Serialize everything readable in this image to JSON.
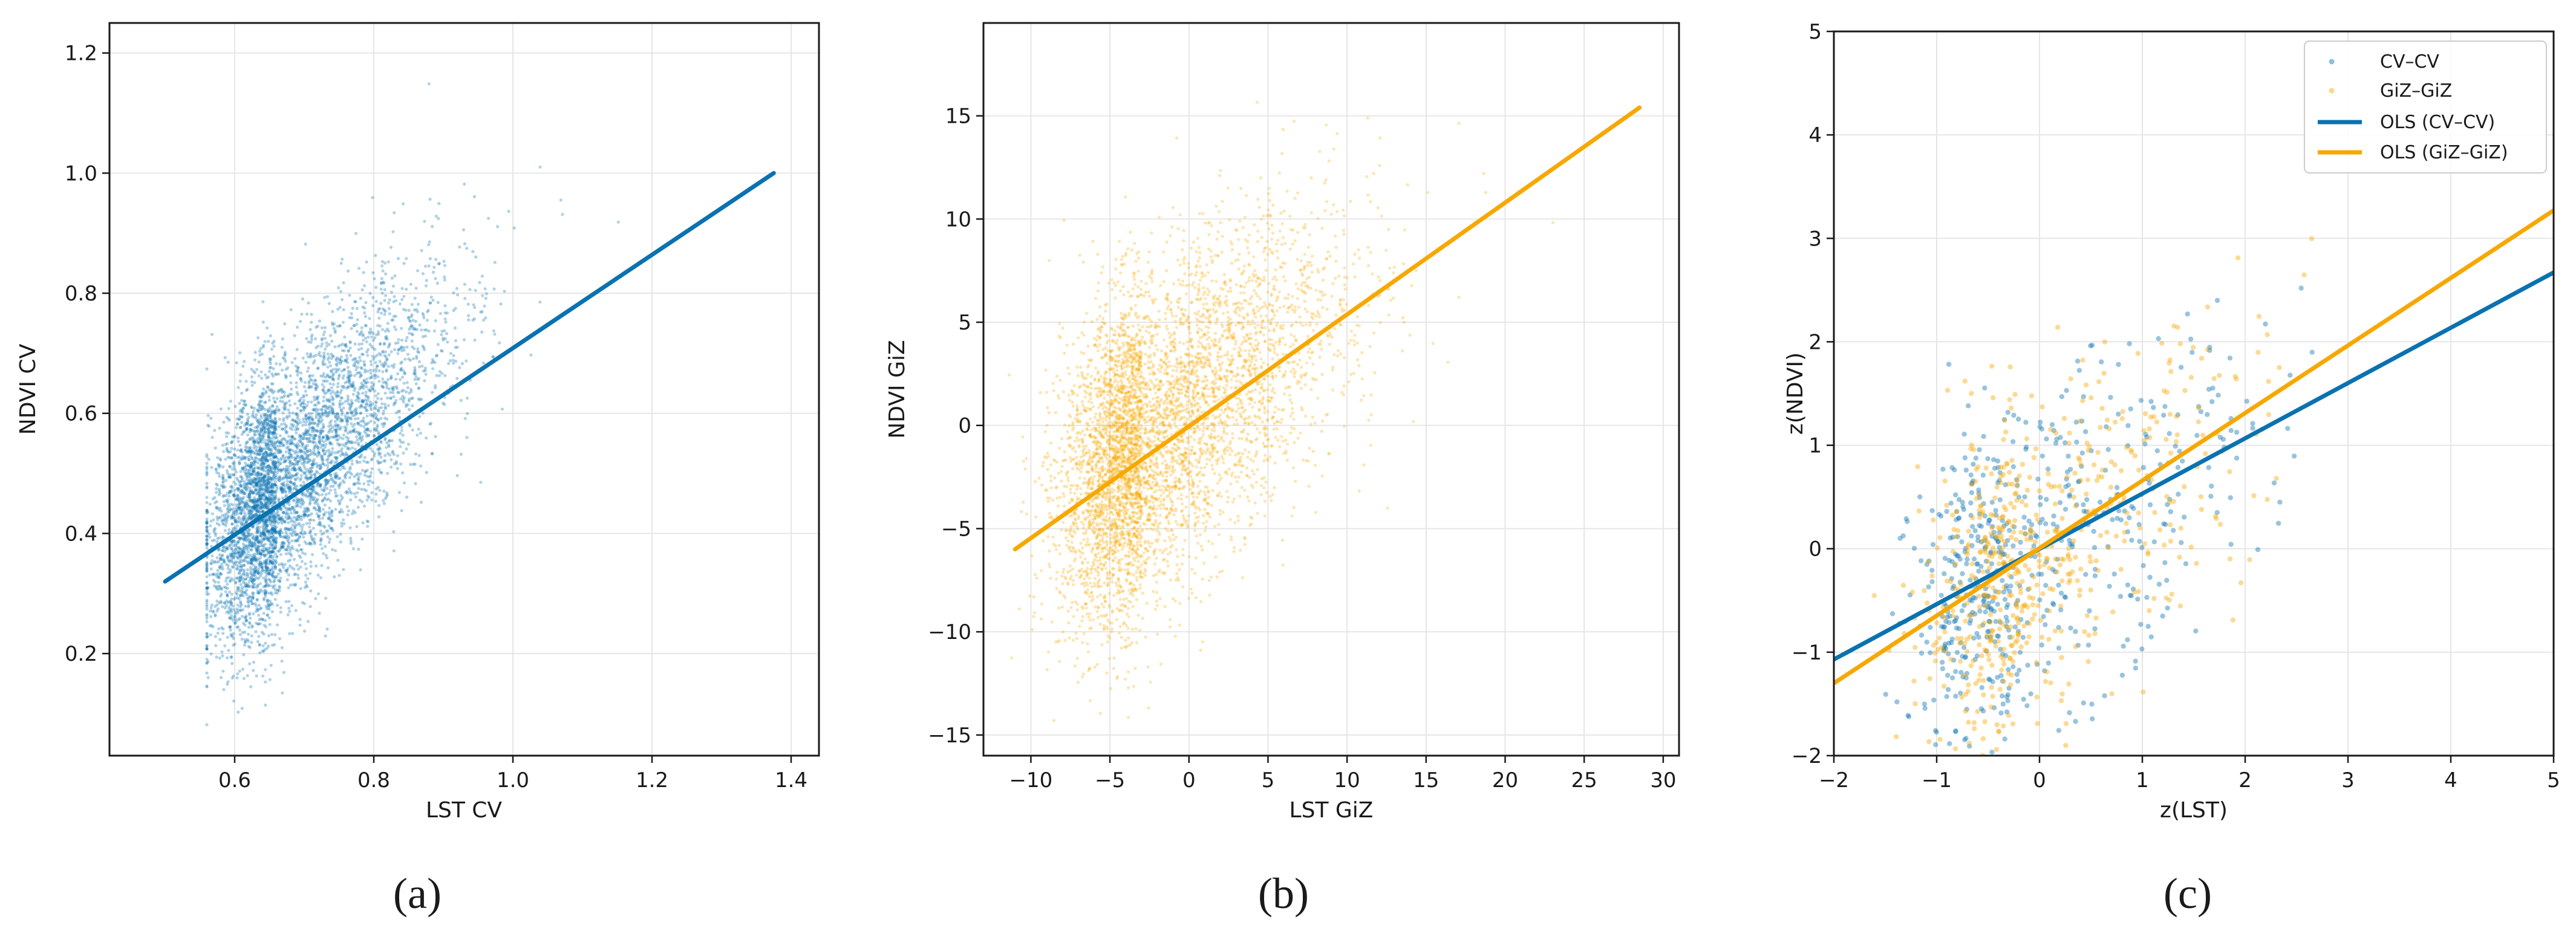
{
  "figure": {
    "colors": {
      "blue": "#0a72b0",
      "orange": "#f7a800",
      "grid": "#e6e6e6",
      "axis": "#1a1a1a"
    }
  },
  "chart_data": [
    {
      "type": "scatter",
      "caption": "(a)",
      "xlabel": "LST CV",
      "ylabel": "NDVI CV",
      "xlim": [
        0.42,
        1.44
      ],
      "ylim": [
        0.03,
        1.25
      ],
      "xticks": [
        "0.6",
        "0.8",
        "1.0",
        "1.2",
        "1.4"
      ],
      "yticks": [
        "0.2",
        "0.4",
        "0.6",
        "0.8",
        "1.0",
        "1.2"
      ],
      "grid": true,
      "legend": "none",
      "series": [
        {
          "kind": "points",
          "color": "#0a72b0",
          "center": [
            0.66,
            0.47
          ],
          "spread": [
            0.085,
            0.12
          ],
          "slope": 0.78,
          "density": "very high, dense core near (0.62–0.70, 0.45–0.50)"
        },
        {
          "kind": "fit_line",
          "color": "#0a72b0",
          "x": [
            0.5,
            1.375
          ],
          "y": [
            0.32,
            1.0
          ]
        }
      ]
    },
    {
      "type": "scatter",
      "caption": "(b)",
      "xlabel": "LST GiZ",
      "ylabel": "NDVI GiZ",
      "xlim": [
        -13,
        31
      ],
      "ylim": [
        -16,
        19.5
      ],
      "xticks": [
        "−10",
        "−5",
        "0",
        "5",
        "10",
        "15",
        "20",
        "25",
        "30"
      ],
      "yticks": [
        "−15",
        "−10",
        "−5",
        "0",
        "5",
        "10",
        "15"
      ],
      "grid": true,
      "legend": "none",
      "series": [
        {
          "kind": "points",
          "color": "#f7a800",
          "center": [
            -3,
            -1
          ],
          "spread": [
            4.5,
            4.5
          ],
          "slope": 0.55,
          "density": "very high, dense core near (−4…−2, −2…0)"
        },
        {
          "kind": "fit_line",
          "color": "#f7a800",
          "x": [
            -11,
            28.5
          ],
          "y": [
            -6,
            15.4
          ]
        }
      ]
    },
    {
      "type": "scatter",
      "caption": "(c)",
      "xlabel": "z(LST)",
      "ylabel": "z(NDVI)",
      "xlim": [
        -2,
        5
      ],
      "ylim": [
        -2,
        5
      ],
      "xticks": [
        "−2",
        "−1",
        "0",
        "1",
        "2",
        "3",
        "4",
        "5"
      ],
      "yticks": [
        "−2",
        "−1",
        "0",
        "1",
        "2",
        "3",
        "4",
        "5"
      ],
      "grid": true,
      "legend_position": "top-right",
      "legend": [
        "CV–CV",
        "GiZ–GiZ",
        "OLS (CV–CV)",
        "OLS (GiZ–GiZ)"
      ],
      "series": [
        {
          "name": "CV–CV",
          "kind": "points",
          "color": "#0a72b0",
          "center": [
            -0.3,
            -0.2
          ],
          "spread": [
            0.85,
            0.9
          ],
          "slope": 0.55
        },
        {
          "name": "GiZ–GiZ",
          "kind": "points",
          "color": "#f7a800",
          "center": [
            -0.2,
            -0.2
          ],
          "spread": [
            0.85,
            0.9
          ],
          "slope": 0.62
        },
        {
          "name": "OLS (CV–CV)",
          "kind": "fit_line",
          "color": "#0a72b0",
          "x": [
            -2,
            5
          ],
          "y": [
            -1.07,
            2.67
          ]
        },
        {
          "name": "OLS (GiZ–GiZ)",
          "kind": "fit_line",
          "color": "#f7a800",
          "x": [
            -2,
            5
          ],
          "y": [
            -1.3,
            3.27
          ]
        }
      ]
    }
  ]
}
